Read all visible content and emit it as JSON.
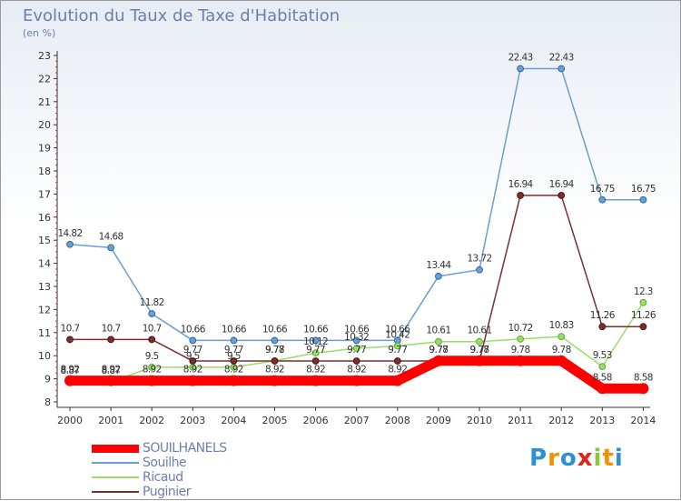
{
  "title": "Evolution du Taux de Taxe d'Habitation",
  "subtitle": "(en %)",
  "brand": {
    "letters": [
      {
        "ch": "P",
        "color": "#2f8fd8"
      },
      {
        "ch": "r",
        "color": "#f39200"
      },
      {
        "ch": "o",
        "color": "#2f8fd8"
      },
      {
        "ch": "x",
        "color": "#e2231a"
      },
      {
        "ch": "i",
        "color": "#8cc63f"
      },
      {
        "ch": "t",
        "color": "#f39200"
      },
      {
        "ch": "i",
        "color": "#2f8fd8"
      }
    ]
  },
  "chart_data": {
    "type": "line",
    "title": "Evolution du Taux de Taxe d'Habitation",
    "ylabel": "(en %)",
    "xlabel": "",
    "ylim": [
      8,
      23
    ],
    "grid": false,
    "legend_position": "bottom-left",
    "x": [
      "2000",
      "2001",
      "2002",
      "2003",
      "2004",
      "2005",
      "2006",
      "2007",
      "2008",
      "2009",
      "2010",
      "2011",
      "2012",
      "2013",
      "2014"
    ],
    "yticks": [
      "8",
      "9",
      "10",
      "11",
      "12",
      "13",
      "14",
      "15",
      "16",
      "17",
      "18",
      "19",
      "20",
      "21",
      "22",
      "23"
    ],
    "series": [
      {
        "name": "SOUILHANELS",
        "color": "#ff0000",
        "thick": true,
        "values": [
          8.92,
          8.92,
          8.92,
          8.92,
          8.92,
          8.92,
          8.92,
          8.92,
          8.92,
          9.78,
          9.78,
          9.78,
          9.78,
          8.58,
          8.58
        ],
        "labels": [
          "8.92",
          "8.92",
          "8.92",
          "8.92",
          "8.92",
          "8.92",
          "8.92",
          "8.92",
          "8.92",
          "9.78",
          "9.78",
          "9.78",
          "9.78",
          "8.58",
          "8.58"
        ]
      },
      {
        "name": "Souilhe",
        "color": "#6a9fd4",
        "thick": false,
        "values": [
          14.82,
          14.68,
          11.82,
          10.66,
          10.66,
          10.66,
          10.66,
          10.66,
          10.66,
          13.44,
          13.72,
          22.43,
          22.43,
          16.75,
          16.75
        ],
        "labels": [
          "14.82",
          "14.68",
          "11.82",
          "10.66",
          "10.66",
          "10.66",
          "10.66",
          "10.66",
          "10.66",
          "13.44",
          "13.72",
          "22.43",
          "22.43",
          "16.75",
          "16.75"
        ]
      },
      {
        "name": "Ricaud",
        "color": "#9ade6a",
        "thick": false,
        "values": [
          8.87,
          8.87,
          9.5,
          9.5,
          9.5,
          9.78,
          10.12,
          10.32,
          10.42,
          10.61,
          10.61,
          10.72,
          10.83,
          9.53,
          12.3
        ],
        "labels": [
          "8.87",
          "8.87",
          "9.5",
          "9.5",
          "9.5",
          "9.78",
          "10.12",
          "10.32",
          "10.42",
          "10.61",
          "10.61",
          "10.72",
          "10.83",
          "9.53",
          "12.3"
        ]
      },
      {
        "name": "Puginier",
        "color": "#7a2f2f",
        "thick": false,
        "values": [
          10.7,
          10.7,
          10.7,
          9.77,
          9.77,
          9.77,
          9.77,
          9.77,
          9.77,
          9.77,
          9.77,
          16.94,
          16.94,
          11.26,
          11.26
        ],
        "labels": [
          "10.7",
          "10.7",
          "10.7",
          "9.77",
          "9.77",
          "9.77",
          "9.77",
          "9.77",
          "9.77",
          "9.77",
          "9.77",
          "16.94",
          "16.94",
          "11.26",
          "11.26"
        ]
      }
    ]
  }
}
